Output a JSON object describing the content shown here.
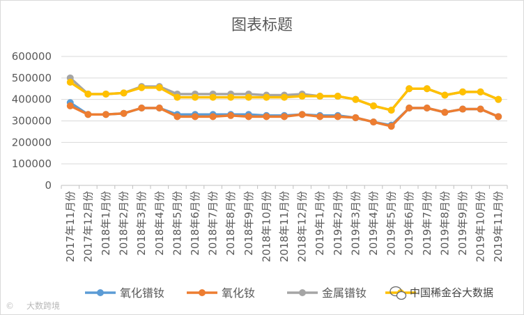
{
  "chart_data": {
    "type": "line",
    "title": "图表标题",
    "xlabel": "",
    "ylabel": "",
    "ylim": [
      0,
      600000
    ],
    "yticks": [
      "0",
      "100000",
      "200000",
      "300000",
      "400000",
      "500000",
      "600000"
    ],
    "grid": "horizontal",
    "legend_position": "bottom",
    "categories": [
      "2017年11月份",
      "2017年12月份",
      "2018年1月份",
      "2018年2月份",
      "2018年3月份",
      "2018年4月份",
      "2018年5月份",
      "2018年6月份",
      "2018年7月份",
      "2018年8月份",
      "2018年9月份",
      "2018年10月份",
      "2018年11月份",
      "2018年12月份",
      "2019年1月份",
      "2019年2月份",
      "2019年3月份",
      "2019年4月份",
      "2019年5月份",
      "2019年6月份",
      "2019年7月份",
      "2019年8月份",
      "2019年9月份",
      "2019年10月份",
      "2019年11月份"
    ],
    "series": [
      {
        "name": "氧化镨钕",
        "color": "#5B9BD5",
        "values": [
          385000,
          330000,
          330000,
          335000,
          360000,
          360000,
          330000,
          330000,
          330000,
          330000,
          330000,
          325000,
          325000,
          330000,
          325000,
          325000,
          315000,
          295000,
          280000,
          360000,
          360000,
          340000,
          355000,
          355000,
          320000
        ]
      },
      {
        "name": "氧化钕",
        "color": "#ED7D31",
        "values": [
          370000,
          330000,
          330000,
          335000,
          360000,
          360000,
          320000,
          320000,
          320000,
          325000,
          320000,
          320000,
          320000,
          330000,
          320000,
          320000,
          315000,
          295000,
          275000,
          360000,
          360000,
          340000,
          355000,
          355000,
          320000
        ]
      },
      {
        "name": "金属镨钕",
        "color": "#A5A5A5",
        "values": [
          500000,
          425000,
          425000,
          430000,
          460000,
          460000,
          425000,
          425000,
          425000,
          425000,
          425000,
          420000,
          420000,
          425000,
          415000,
          415000,
          400000,
          370000,
          350000,
          450000,
          450000,
          420000,
          435000,
          435000,
          400000
        ]
      },
      {
        "name": "",
        "color": "#FFC000",
        "values": [
          480000,
          425000,
          425000,
          430000,
          455000,
          455000,
          410000,
          410000,
          410000,
          410000,
          410000,
          410000,
          410000,
          415000,
          415000,
          415000,
          400000,
          370000,
          350000,
          450000,
          450000,
          420000,
          435000,
          435000,
          400000
        ]
      }
    ]
  },
  "watermark": {
    "wechat_account": "中国稀金谷大数据",
    "bottom_left": "大数跨境",
    "wechat_icon": "wechat-icon"
  }
}
